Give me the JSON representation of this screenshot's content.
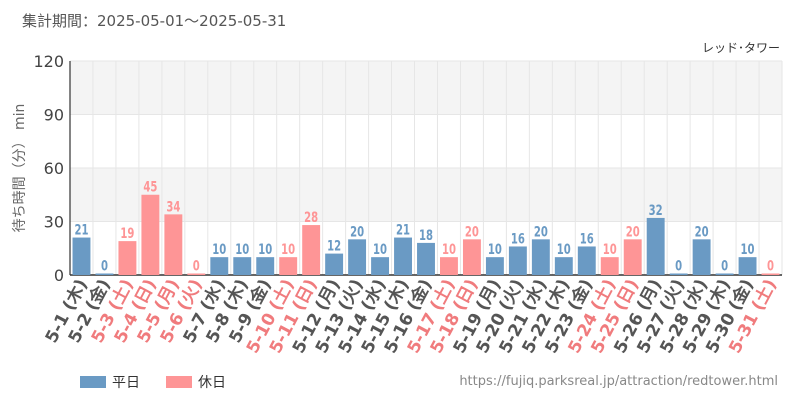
{
  "header": {
    "period": "集計期間：2025-05-01～2025-05-31"
  },
  "source_url": "https://fujiq.parksreal.jp/attraction/redtower.html",
  "colors": {
    "weekday": "#6a9ac4",
    "holiday": "#fe9596",
    "grid": "#e6e6e6",
    "band": "#f4f4f4",
    "axis": "#333333"
  },
  "chart_data": {
    "type": "bar",
    "title": "",
    "attraction": "レッド･タワー",
    "ylabel": "待ち時間（分） min",
    "xlabel": "",
    "ylim": [
      0,
      120
    ],
    "yticks": [
      0,
      30,
      60,
      90,
      120
    ],
    "grid": true,
    "legend_position": "bottom-left",
    "categories": [
      "5-1 (木)",
      "5-2 (金)",
      "5-3 (土)",
      "5-4 (日)",
      "5-5 (月)",
      "5-6 (火)",
      "5-7 (水)",
      "5-8 (木)",
      "5-9 (金)",
      "5-10 (土)",
      "5-11 (日)",
      "5-12 (月)",
      "5-13 (火)",
      "5-14 (水)",
      "5-15 (木)",
      "5-16 (金)",
      "5-17 (土)",
      "5-18 (日)",
      "5-19 (月)",
      "5-20 (火)",
      "5-21 (水)",
      "5-22 (木)",
      "5-23 (金)",
      "5-24 (土)",
      "5-25 (日)",
      "5-26 (月)",
      "5-27 (火)",
      "5-28 (水)",
      "5-29 (木)",
      "5-30 (金)",
      "5-31 (土)"
    ],
    "values": [
      21,
      0,
      19,
      45,
      34,
      0,
      10,
      10,
      10,
      10,
      28,
      12,
      20,
      10,
      21,
      18,
      10,
      20,
      10,
      16,
      20,
      10,
      16,
      10,
      20,
      32,
      0,
      20,
      0,
      10,
      0
    ],
    "day_type": [
      "weekday",
      "weekday",
      "holiday",
      "holiday",
      "holiday",
      "holiday",
      "weekday",
      "weekday",
      "weekday",
      "holiday",
      "holiday",
      "weekday",
      "weekday",
      "weekday",
      "weekday",
      "weekday",
      "holiday",
      "holiday",
      "weekday",
      "weekday",
      "weekday",
      "weekday",
      "weekday",
      "holiday",
      "holiday",
      "weekday",
      "weekday",
      "weekday",
      "weekday",
      "weekday",
      "holiday"
    ],
    "legend": [
      {
        "key": "weekday",
        "label": "平日"
      },
      {
        "key": "holiday",
        "label": "休日"
      }
    ]
  }
}
